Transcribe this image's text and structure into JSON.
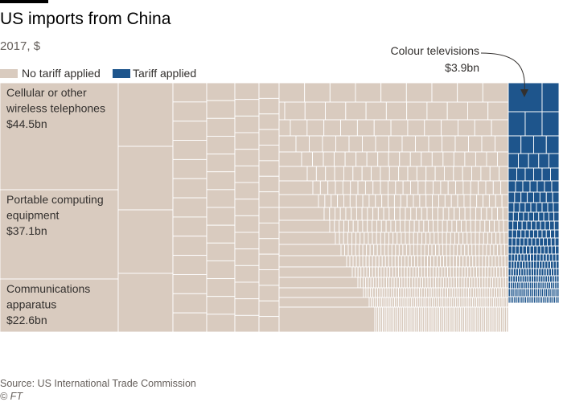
{
  "title": "US imports from China",
  "subtitle": "2017, $",
  "legend": {
    "no_tariff": "No tariff applied",
    "tariff": "Tariff applied"
  },
  "colors": {
    "no_tariff": "#d9cbbf",
    "tariff": "#1e558c",
    "lines": "#ffffff"
  },
  "annotation": {
    "label": "Colour televisions",
    "value": "$3.9bn"
  },
  "source": "Source: US International Trade Commission",
  "credit": "© FT",
  "chart_data": {
    "type": "treemap",
    "items": [
      {
        "lines": [
          "Cellular or other",
          "wireless telephones",
          "$44.5bn"
        ],
        "name": "Cellular or other wireless telephones",
        "value": 44.5,
        "unit": "$bn",
        "tariff": false
      },
      {
        "lines": [
          "Portable computing",
          "equipment",
          "$37.1bn"
        ],
        "name": "Portable computing equipment",
        "value": 37.1,
        "unit": "$bn",
        "tariff": false
      },
      {
        "lines": [
          "Communications",
          "apparatus",
          "$22.6bn"
        ],
        "name": "Communications apparatus",
        "value": 22.6,
        "unit": "$bn",
        "tariff": false
      },
      {
        "name": "Colour televisions",
        "value": 3.9,
        "unit": "$bn",
        "tariff": true
      }
    ]
  }
}
